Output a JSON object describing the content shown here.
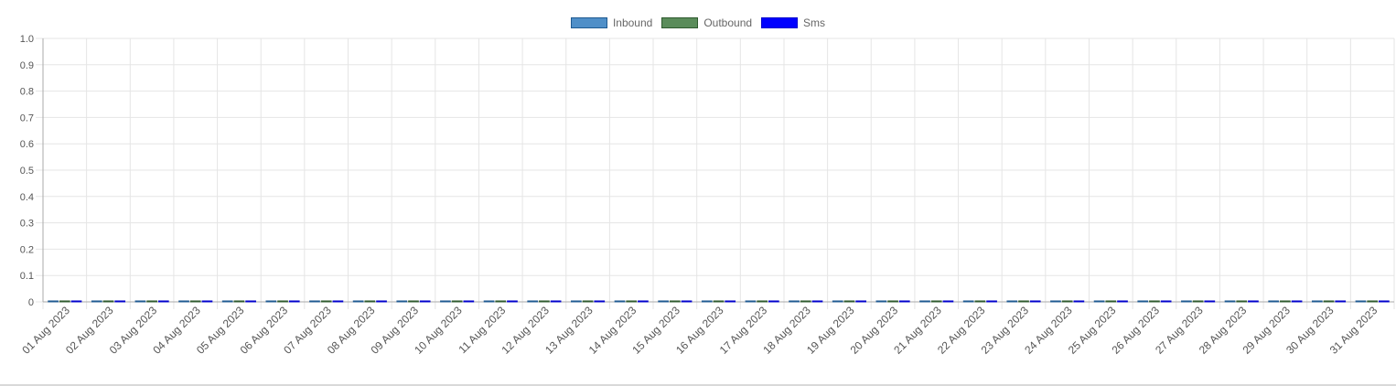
{
  "chart_data": {
    "type": "bar",
    "title": "",
    "xlabel": "",
    "ylabel": "",
    "ylim": [
      0,
      1.0
    ],
    "yticks": [
      "0",
      "0.1",
      "0.2",
      "0.3",
      "0.4",
      "0.5",
      "0.6",
      "0.7",
      "0.8",
      "0.9",
      "1.0"
    ],
    "grid": true,
    "legend_position": "top-center",
    "categories": [
      "01 Aug 2023",
      "02 Aug 2023",
      "03 Aug 2023",
      "04 Aug 2023",
      "05 Aug 2023",
      "06 Aug 2023",
      "07 Aug 2023",
      "08 Aug 2023",
      "09 Aug 2023",
      "10 Aug 2023",
      "11 Aug 2023",
      "12 Aug 2023",
      "13 Aug 2023",
      "14 Aug 2023",
      "15 Aug 2023",
      "16 Aug 2023",
      "17 Aug 2023",
      "18 Aug 2023",
      "19 Aug 2023",
      "20 Aug 2023",
      "21 Aug 2023",
      "22 Aug 2023",
      "23 Aug 2023",
      "24 Aug 2023",
      "25 Aug 2023",
      "26 Aug 2023",
      "27 Aug 2023",
      "28 Aug 2023",
      "29 Aug 2023",
      "30 Aug 2023",
      "31 Aug 2023"
    ],
    "series": [
      {
        "name": "Inbound",
        "color": "#4f8fc8",
        "border": "#1f5a91",
        "values": [
          0,
          0,
          0,
          0,
          0,
          0,
          0,
          0,
          0,
          0,
          0,
          0,
          0,
          0,
          0,
          0,
          0,
          0,
          0,
          0,
          0,
          0,
          0,
          0,
          0,
          0,
          0,
          0,
          0,
          0,
          0
        ]
      },
      {
        "name": "Outbound",
        "color": "#5a8c5a",
        "border": "#2e5a2e",
        "values": [
          0,
          0,
          0,
          0,
          0,
          0,
          0,
          0,
          0,
          0,
          0,
          0,
          0,
          0,
          0,
          0,
          0,
          0,
          0,
          0,
          0,
          0,
          0,
          0,
          0,
          0,
          0,
          0,
          0,
          0,
          0
        ]
      },
      {
        "name": "Sms",
        "color": "#0000ff",
        "border": "#0000cc",
        "values": [
          0,
          0,
          0,
          0,
          0,
          0,
          0,
          0,
          0,
          0,
          0,
          0,
          0,
          0,
          0,
          0,
          0,
          0,
          0,
          0,
          0,
          0,
          0,
          0,
          0,
          0,
          0,
          0,
          0,
          0,
          0
        ]
      }
    ]
  },
  "colors": {
    "grid": "#e5e5e5",
    "axis": "#aaaaaa",
    "tick_text": "#555555",
    "legend_text": "#666666"
  }
}
